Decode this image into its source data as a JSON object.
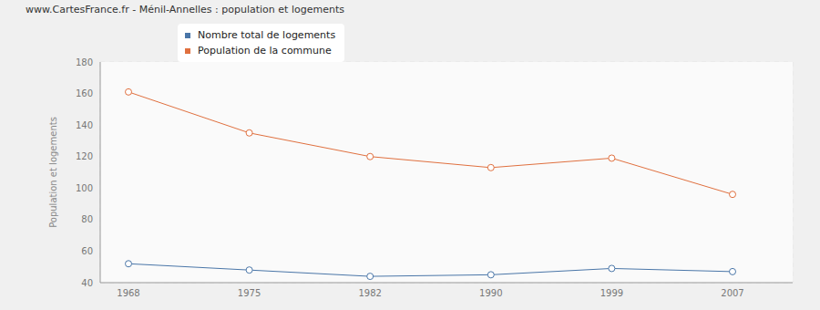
{
  "chart_data": {
    "type": "line",
    "title": "www.CartesFrance.fr - Ménil-Annelles : population et logements",
    "y_label": "Population et logements",
    "categories": [
      "1968",
      "1975",
      "1982",
      "1990",
      "1999",
      "2007"
    ],
    "series": [
      {
        "name": "Nombre total de logements",
        "color": "#4a76a8",
        "values": [
          52,
          48,
          44,
          45,
          49,
          47
        ]
      },
      {
        "name": "Population de la commune",
        "color": "#e0703f",
        "values": [
          161,
          135,
          120,
          113,
          119,
          96
        ]
      }
    ],
    "ylim": [
      40,
      180
    ],
    "yticks": [
      40,
      60,
      80,
      100,
      120,
      140,
      160,
      180
    ],
    "grid": true,
    "marker": "circle",
    "legend": "top"
  }
}
